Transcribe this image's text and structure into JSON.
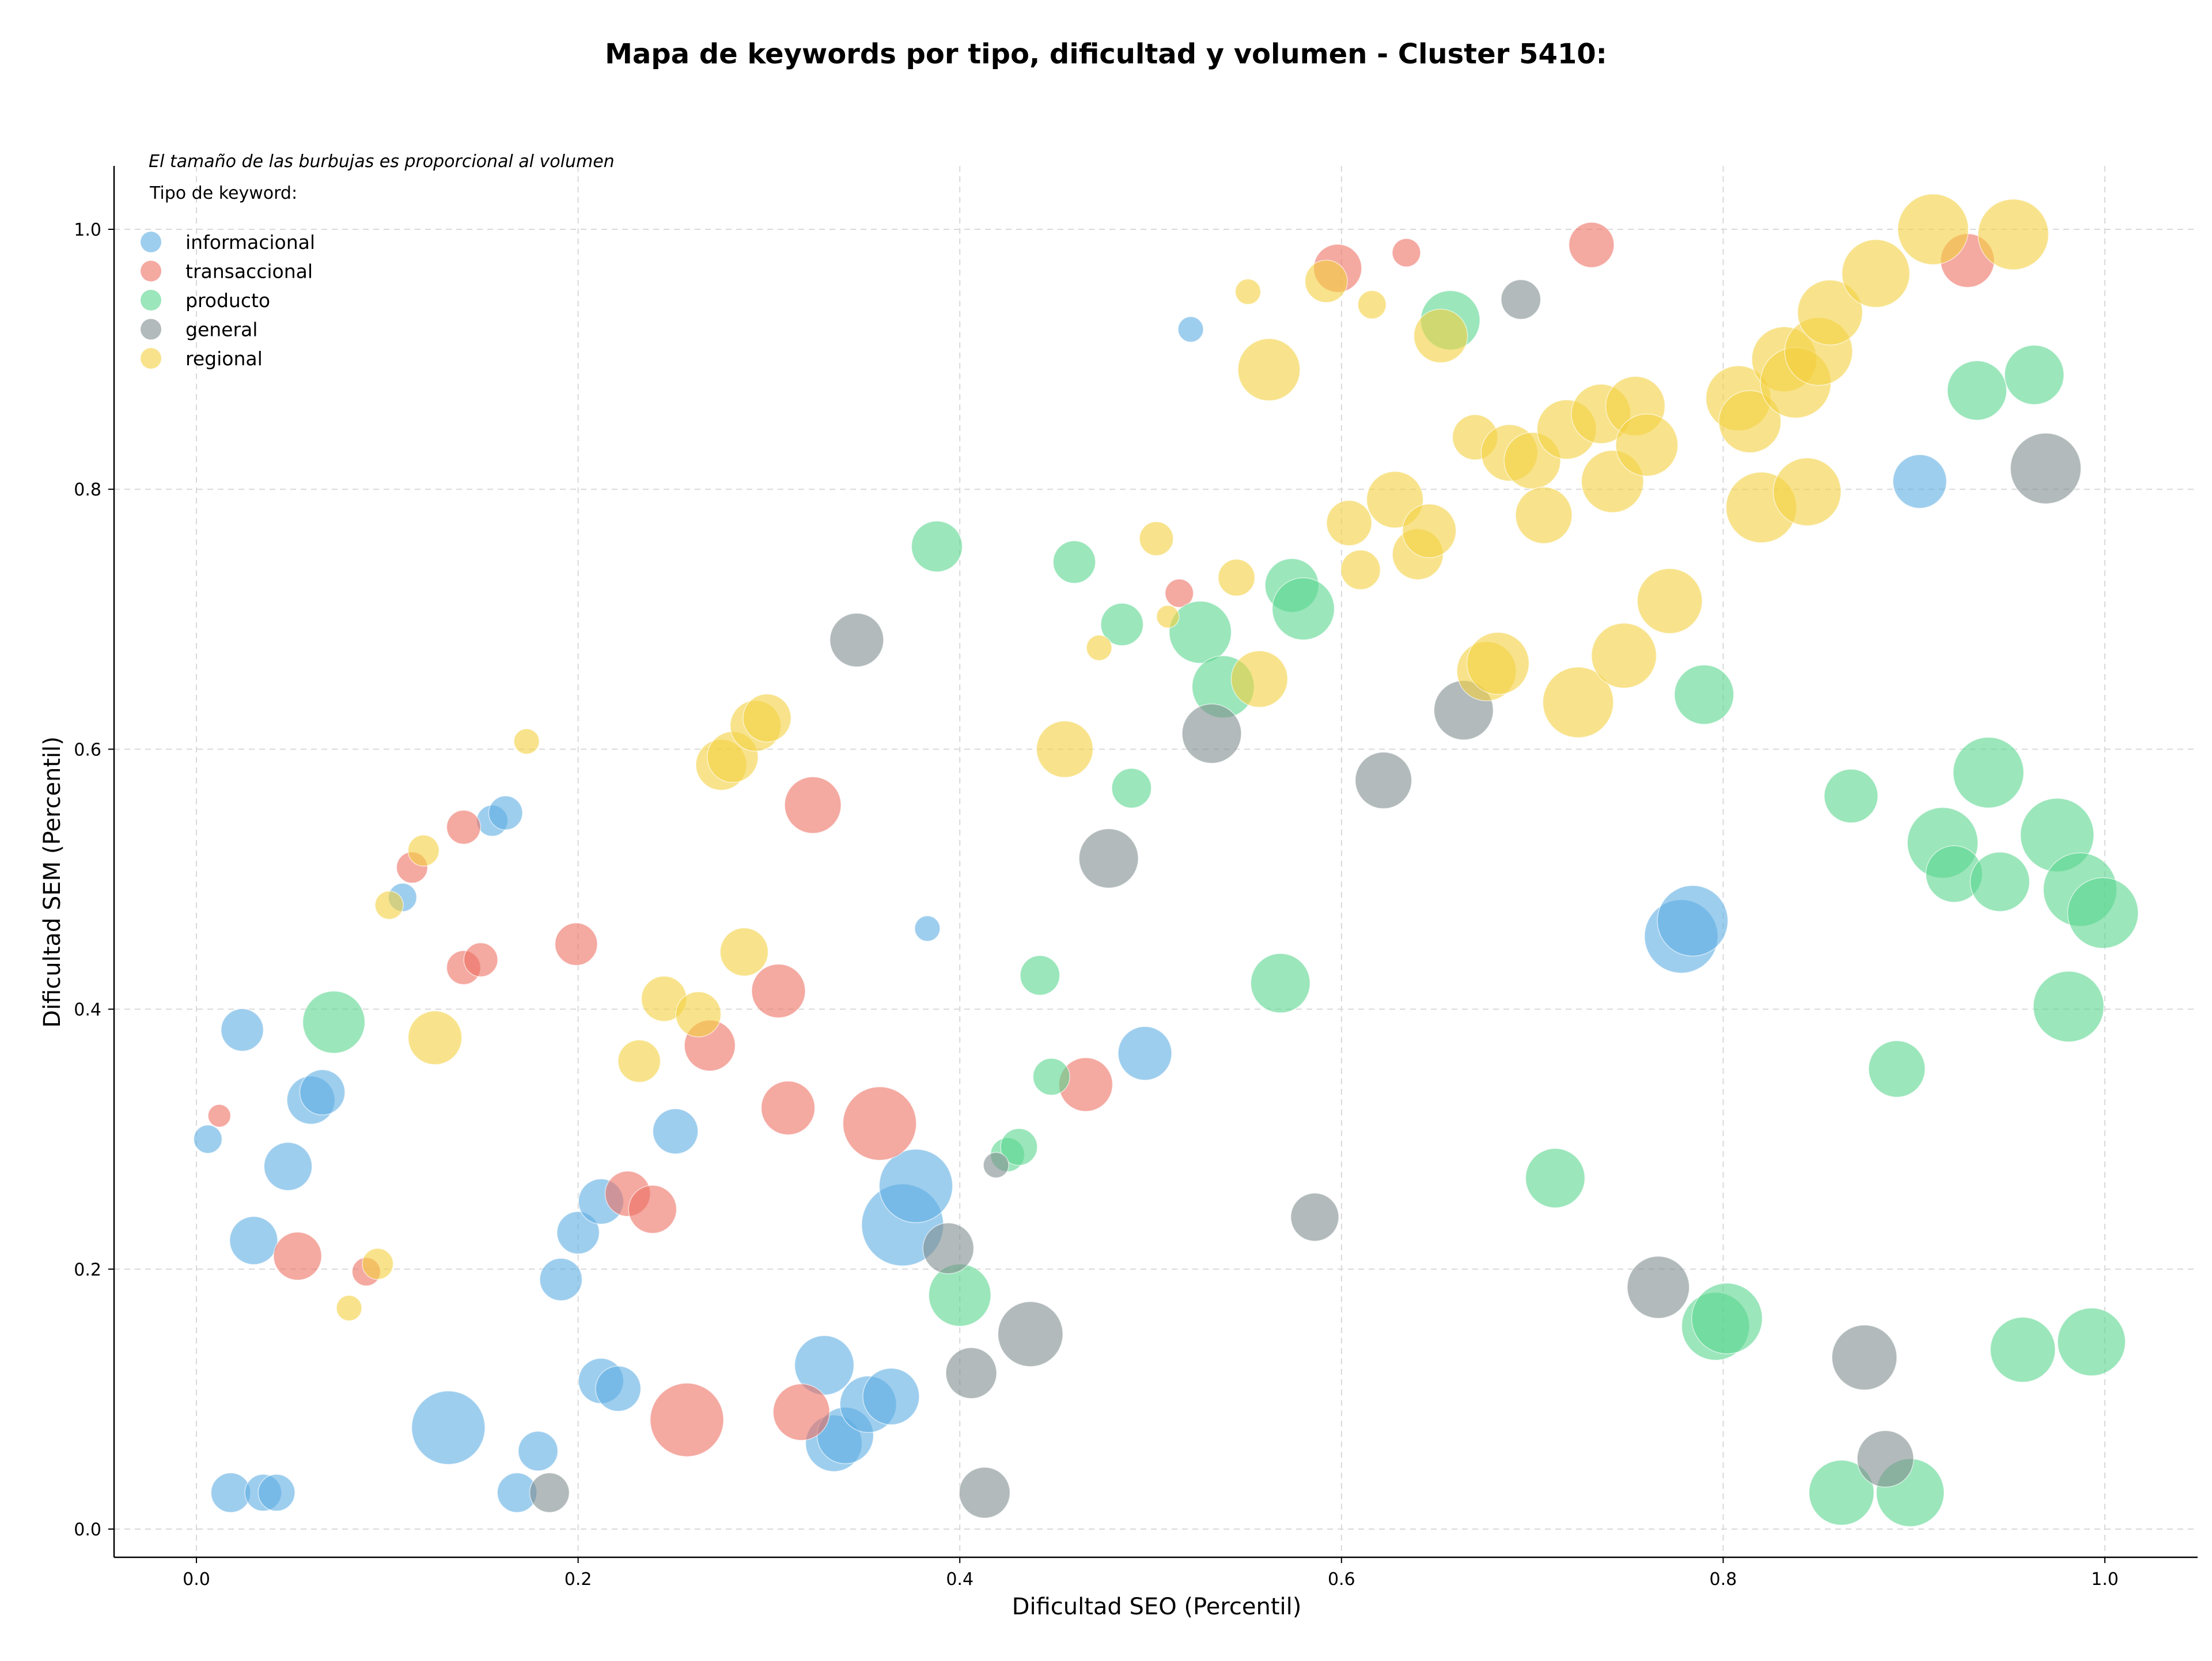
{
  "chart_data": {
    "type": "scatter",
    "title": "Mapa de keywords por tipo, dificultad y volumen - Cluster 5410:",
    "xlabel": "Dificultad SEO (Percentil)",
    "ylabel": "Dificultad SEM (Percentil)",
    "xlim": [
      -0.04,
      1.05
    ],
    "ylim": [
      -0.02,
      1.05
    ],
    "xticks": [
      "0.0",
      "0.2",
      "0.4",
      "0.6",
      "0.8",
      "1.0"
    ],
    "yticks": [
      "0.0",
      "0.2",
      "0.4",
      "0.6",
      "0.8",
      "1.0"
    ],
    "grid": true,
    "size_note": "El tamaño de las burbujas es proporcional al volumen",
    "legend_title": "Tipo de keyword:",
    "legend_position": "top-left",
    "series": [
      {
        "name": "informacional",
        "color": "#5dade2",
        "points": [
          [
            0.006,
            0.3,
            10
          ],
          [
            0.018,
            0.028,
            14
          ],
          [
            0.024,
            0.384,
            15
          ],
          [
            0.03,
            0.222,
            17
          ],
          [
            0.035,
            0.028,
            13
          ],
          [
            0.042,
            0.028,
            13
          ],
          [
            0.048,
            0.279,
            17
          ],
          [
            0.06,
            0.33,
            17
          ],
          [
            0.066,
            0.336,
            16
          ],
          [
            0.108,
            0.486,
            10
          ],
          [
            0.155,
            0.545,
            11
          ],
          [
            0.162,
            0.551,
            12
          ],
          [
            0.132,
            0.078,
            26
          ],
          [
            0.168,
            0.028,
            14
          ],
          [
            0.179,
            0.06,
            14
          ],
          [
            0.191,
            0.192,
            15
          ],
          [
            0.2,
            0.228,
            15
          ],
          [
            0.212,
            0.252,
            16
          ],
          [
            0.212,
            0.114,
            16
          ],
          [
            0.221,
            0.108,
            16
          ],
          [
            0.251,
            0.306,
            16
          ],
          [
            0.329,
            0.126,
            21
          ],
          [
            0.334,
            0.066,
            20
          ],
          [
            0.34,
            0.072,
            20
          ],
          [
            0.352,
            0.096,
            20
          ],
          [
            0.364,
            0.102,
            20
          ],
          [
            0.37,
            0.234,
            29
          ],
          [
            0.377,
            0.264,
            26
          ],
          [
            0.383,
            0.462,
            9
          ],
          [
            0.497,
            0.366,
            19
          ],
          [
            0.521,
            0.923,
            9
          ],
          [
            0.778,
            0.456,
            26
          ],
          [
            0.784,
            0.468,
            25
          ],
          [
            0.903,
            0.806,
            19
          ]
        ]
      },
      {
        "name": "transaccional",
        "color": "#ec7063",
        "points": [
          [
            0.012,
            0.318,
            8
          ],
          [
            0.053,
            0.21,
            17
          ],
          [
            0.089,
            0.198,
            10
          ],
          [
            0.113,
            0.509,
            11
          ],
          [
            0.14,
            0.54,
            12
          ],
          [
            0.14,
            0.432,
            12
          ],
          [
            0.149,
            0.438,
            12
          ],
          [
            0.199,
            0.45,
            15
          ],
          [
            0.226,
            0.258,
            16
          ],
          [
            0.239,
            0.246,
            17
          ],
          [
            0.257,
            0.084,
            26
          ],
          [
            0.269,
            0.372,
            18
          ],
          [
            0.305,
            0.414,
            19
          ],
          [
            0.31,
            0.324,
            19
          ],
          [
            0.317,
            0.09,
            20
          ],
          [
            0.323,
            0.557,
            20
          ],
          [
            0.358,
            0.312,
            26
          ],
          [
            0.466,
            0.342,
            19
          ],
          [
            0.515,
            0.72,
            10
          ],
          [
            0.598,
            0.97,
            17
          ],
          [
            0.634,
            0.982,
            10
          ],
          [
            0.731,
            0.988,
            16
          ],
          [
            0.928,
            0.976,
            19
          ]
        ]
      },
      {
        "name": "producto",
        "color": "#58d68d",
        "points": [
          [
            0.072,
            0.39,
            22
          ],
          [
            0.388,
            0.756,
            18
          ],
          [
            0.4,
            0.18,
            22
          ],
          [
            0.425,
            0.288,
            12
          ],
          [
            0.431,
            0.294,
            13
          ],
          [
            0.442,
            0.426,
            14
          ],
          [
            0.448,
            0.348,
            13
          ],
          [
            0.46,
            0.744,
            15
          ],
          [
            0.485,
            0.696,
            15
          ],
          [
            0.49,
            0.57,
            14
          ],
          [
            0.526,
            0.69,
            22
          ],
          [
            0.538,
            0.648,
            22
          ],
          [
            0.568,
            0.42,
            21
          ],
          [
            0.574,
            0.726,
            19
          ],
          [
            0.58,
            0.708,
            22
          ],
          [
            0.657,
            0.93,
            21
          ],
          [
            0.712,
            0.27,
            21
          ],
          [
            0.79,
            0.642,
            21
          ],
          [
            0.796,
            0.156,
            24
          ],
          [
            0.802,
            0.162,
            25
          ],
          [
            0.862,
            0.028,
            23
          ],
          [
            0.867,
            0.564,
            19
          ],
          [
            0.891,
            0.354,
            20
          ],
          [
            0.898,
            0.028,
            24
          ],
          [
            0.915,
            0.528,
            25
          ],
          [
            0.921,
            0.504,
            20
          ],
          [
            0.933,
            0.876,
            21
          ],
          [
            0.939,
            0.582,
            25
          ],
          [
            0.945,
            0.498,
            21
          ],
          [
            0.957,
            0.138,
            23
          ],
          [
            0.963,
            0.888,
            21
          ],
          [
            0.975,
            0.534,
            26
          ],
          [
            0.981,
            0.402,
            25
          ],
          [
            0.987,
            0.492,
            26
          ],
          [
            0.993,
            0.144,
            24
          ],
          [
            0.999,
            0.474,
            25
          ]
        ]
      },
      {
        "name": "general",
        "color": "#7f8c8d",
        "points": [
          [
            0.185,
            0.028,
            14
          ],
          [
            0.346,
            0.684,
            19
          ],
          [
            0.394,
            0.216,
            18
          ],
          [
            0.406,
            0.12,
            18
          ],
          [
            0.413,
            0.028,
            18
          ],
          [
            0.419,
            0.28,
            9
          ],
          [
            0.437,
            0.15,
            23
          ],
          [
            0.478,
            0.516,
            21
          ],
          [
            0.532,
            0.612,
            21
          ],
          [
            0.586,
            0.24,
            17
          ],
          [
            0.622,
            0.576,
            20
          ],
          [
            0.664,
            0.63,
            21
          ],
          [
            0.694,
            0.946,
            14
          ],
          [
            0.766,
            0.186,
            22
          ],
          [
            0.874,
            0.132,
            23
          ],
          [
            0.885,
            0.054,
            20
          ],
          [
            0.969,
            0.816,
            25
          ]
        ]
      },
      {
        "name": "regional",
        "color": "#f4d03f",
        "points": [
          [
            0.08,
            0.17,
            9
          ],
          [
            0.095,
            0.204,
            11
          ],
          [
            0.101,
            0.48,
            10
          ],
          [
            0.119,
            0.522,
            11
          ],
          [
            0.125,
            0.378,
            19
          ],
          [
            0.173,
            0.606,
            9
          ],
          [
            0.232,
            0.36,
            15
          ],
          [
            0.245,
            0.408,
            16
          ],
          [
            0.263,
            0.396,
            16
          ],
          [
            0.275,
            0.588,
            18
          ],
          [
            0.281,
            0.594,
            18
          ],
          [
            0.287,
            0.444,
            17
          ],
          [
            0.293,
            0.618,
            18
          ],
          [
            0.299,
            0.624,
            17
          ],
          [
            0.455,
            0.6,
            20
          ],
          [
            0.473,
            0.678,
            9
          ],
          [
            0.503,
            0.762,
            12
          ],
          [
            0.509,
            0.702,
            8
          ],
          [
            0.545,
            0.732,
            13
          ],
          [
            0.551,
            0.952,
            9
          ],
          [
            0.557,
            0.654,
            20
          ],
          [
            0.562,
            0.892,
            22
          ],
          [
            0.592,
            0.96,
            15
          ],
          [
            0.604,
            0.774,
            16
          ],
          [
            0.61,
            0.738,
            14
          ],
          [
            0.616,
            0.942,
            10
          ],
          [
            0.628,
            0.792,
            20
          ],
          [
            0.64,
            0.75,
            18
          ],
          [
            0.646,
            0.768,
            19
          ],
          [
            0.652,
            0.918,
            19
          ],
          [
            0.67,
            0.84,
            16
          ],
          [
            0.676,
            0.66,
            21
          ],
          [
            0.682,
            0.666,
            22
          ],
          [
            0.688,
            0.828,
            20
          ],
          [
            0.7,
            0.822,
            20
          ],
          [
            0.706,
            0.78,
            20
          ],
          [
            0.718,
            0.846,
            21
          ],
          [
            0.724,
            0.636,
            25
          ],
          [
            0.736,
            0.858,
            21
          ],
          [
            0.742,
            0.806,
            22
          ],
          [
            0.748,
            0.672,
            23
          ],
          [
            0.754,
            0.864,
            21
          ],
          [
            0.76,
            0.834,
            22
          ],
          [
            0.772,
            0.714,
            23
          ],
          [
            0.808,
            0.87,
            23
          ],
          [
            0.814,
            0.852,
            22
          ],
          [
            0.82,
            0.786,
            25
          ],
          [
            0.832,
            0.9,
            23
          ],
          [
            0.838,
            0.882,
            25
          ],
          [
            0.844,
            0.798,
            24
          ],
          [
            0.85,
            0.906,
            24
          ],
          [
            0.856,
            0.936,
            23
          ],
          [
            0.88,
            0.966,
            24
          ],
          [
            0.91,
            1.0,
            25
          ],
          [
            0.952,
            0.996,
            25
          ]
        ]
      }
    ]
  }
}
